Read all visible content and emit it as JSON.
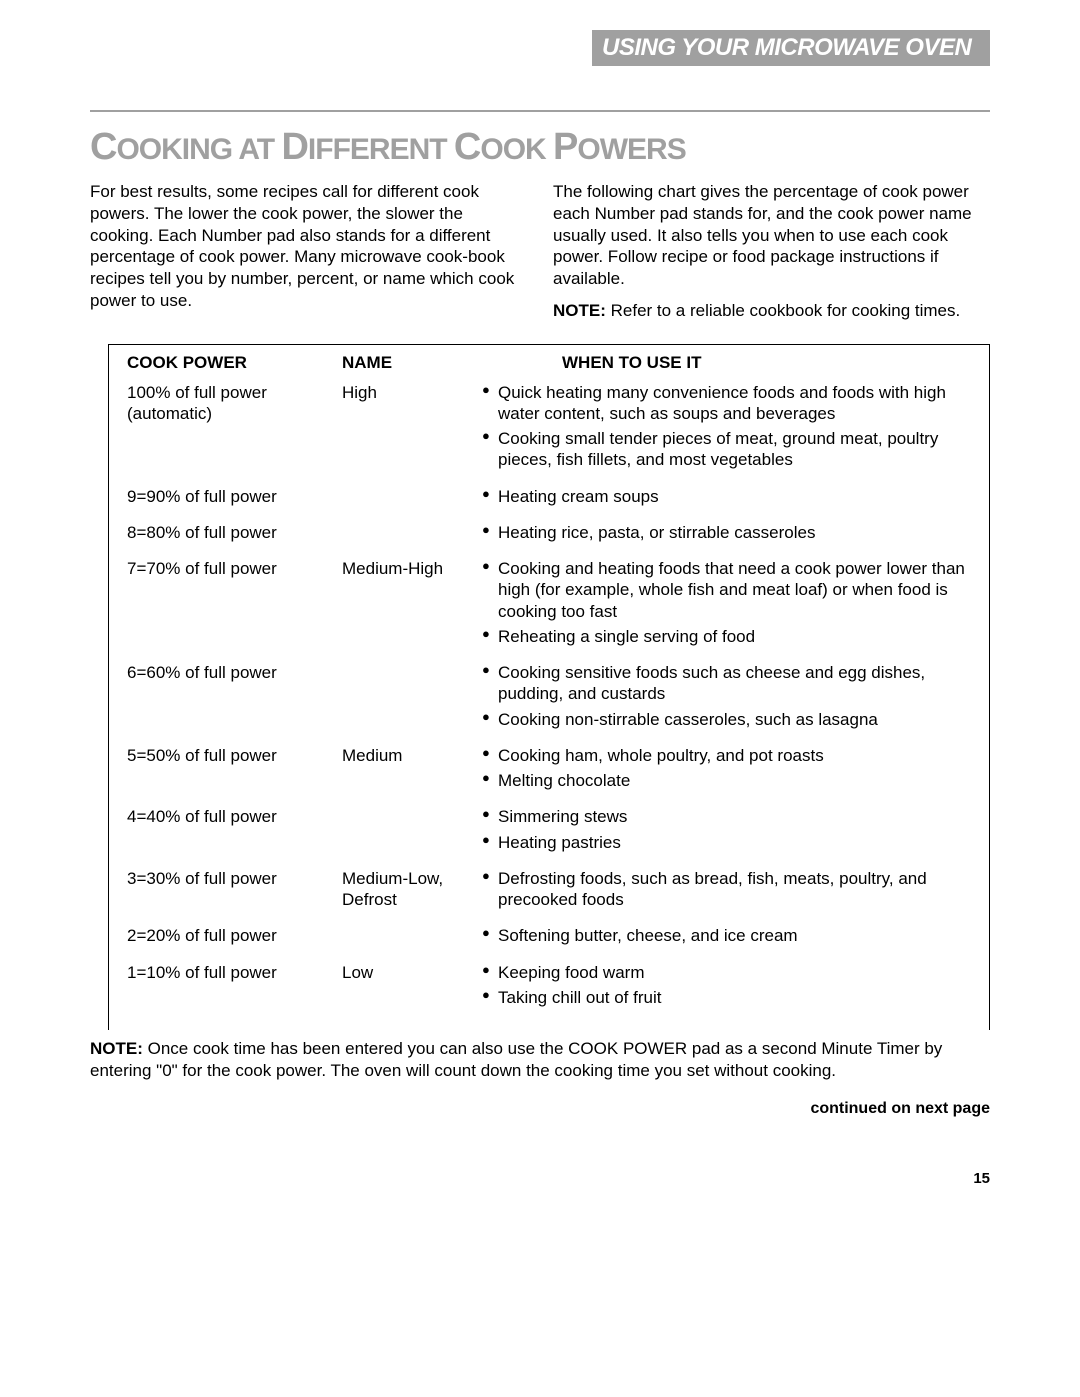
{
  "header": {
    "section_title": "USING YOUR MICROWAVE OVEN"
  },
  "title": {
    "leading_cap": "C",
    "rest_word1": "OOKING AT ",
    "leading_cap2": "D",
    "rest_word2": "IFFERENT ",
    "leading_cap3": "C",
    "rest_word3": "OOK ",
    "leading_cap4": "P",
    "rest_word4": "OWERS"
  },
  "intro": {
    "left": "For best results, some recipes call for different cook powers. The lower the cook power, the slower the cooking. Each Number pad also stands for a different percentage of cook power. Many microwave cook-book recipes tell you by number, percent, or name which cook power to use.",
    "right": "The following chart gives the percentage of cook power each Number pad stands for, and the cook power name usually used. It also tells you when to use each cook power. Follow recipe or food package instructions if available.",
    "note_label": "NOTE:",
    "note_text": " Refer to a reliable cookbook for cooking times."
  },
  "table": {
    "headers": {
      "power": "COOK POWER",
      "name": "NAME",
      "when": "WHEN TO USE IT"
    },
    "rows": [
      {
        "power": "100% of full power (automatic)",
        "name": "High",
        "when": [
          "Quick heating many convenience foods and foods with high water content, such as soups and beverages",
          "Cooking small tender pieces of meat, ground meat, poultry pieces, fish fillets, and most vegetables"
        ]
      },
      {
        "power": "9=90% of full power",
        "name": "",
        "when": [
          "Heating cream soups"
        ]
      },
      {
        "power": "8=80% of full power",
        "name": "",
        "when": [
          "Heating rice, pasta, or stirrable casseroles"
        ]
      },
      {
        "power": "7=70% of full power",
        "name": "Medium-High",
        "when": [
          "Cooking and heating foods that need a cook power lower than high (for example, whole fish and meat loaf) or when food is cooking too fast",
          "Reheating a single serving of food"
        ]
      },
      {
        "power": "6=60% of full power",
        "name": "",
        "when": [
          "Cooking sensitive foods such as cheese and egg dishes, pudding, and custards",
          "Cooking non-stirrable casseroles, such as lasagna"
        ]
      },
      {
        "power": "5=50% of full power",
        "name": "Medium",
        "when": [
          "Cooking ham, whole poultry, and pot roasts",
          "Melting chocolate"
        ]
      },
      {
        "power": "4=40% of full power",
        "name": "",
        "when": [
          "Simmering stews",
          "Heating pastries"
        ]
      },
      {
        "power": "3=30% of full power",
        "name": "Medium-Low, Defrost",
        "when": [
          "Defrosting foods, such as bread, fish, meats, poultry, and precooked foods"
        ]
      },
      {
        "power": "2=20% of full power",
        "name": "",
        "when": [
          "Softening butter, cheese, and ice cream"
        ]
      },
      {
        "power": "1=10% of full power",
        "name": "Low",
        "when": [
          "Keeping food warm",
          "Taking chill out of fruit"
        ]
      }
    ]
  },
  "footnote": {
    "label": "NOTE:",
    "text": " Once cook time has been entered you can also use the COOK POWER pad as a second Minute Timer by entering \"0\" for the cook power. The oven will count down the cooking time you set without cooking."
  },
  "continued": "continued on next page",
  "page_number": "15",
  "colors": {
    "gray": "#a0a0a0",
    "text": "#000000",
    "bg": "#ffffff"
  }
}
